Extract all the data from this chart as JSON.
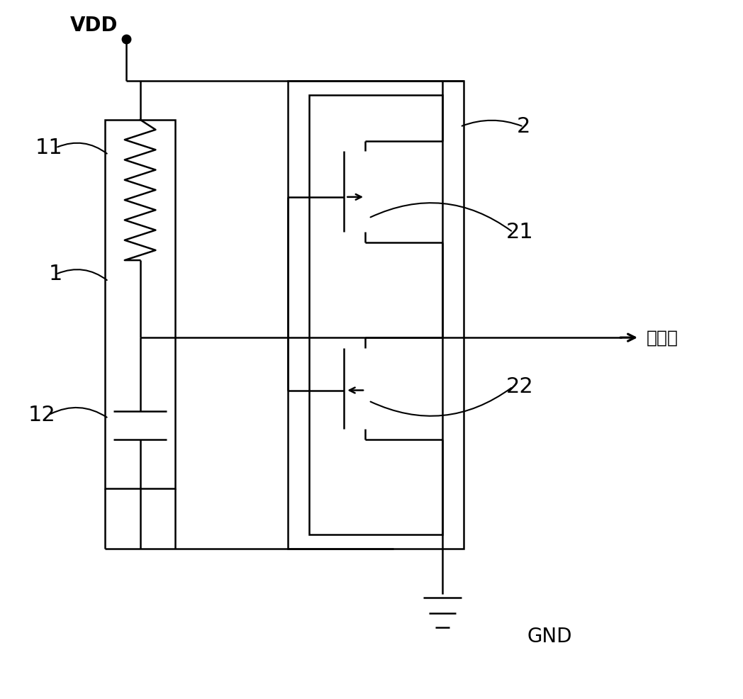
{
  "bg_color": "#ffffff",
  "line_color": "#000000",
  "lw": 1.8,
  "fig_width": 10.48,
  "fig_height": 9.86,
  "vdd_label": "VDD",
  "gnd_label": "GND",
  "output_label": "输出端",
  "label_11": "11",
  "label_1": "1",
  "label_12": "12",
  "label_2": "2",
  "label_21": "21",
  "label_22": "22"
}
